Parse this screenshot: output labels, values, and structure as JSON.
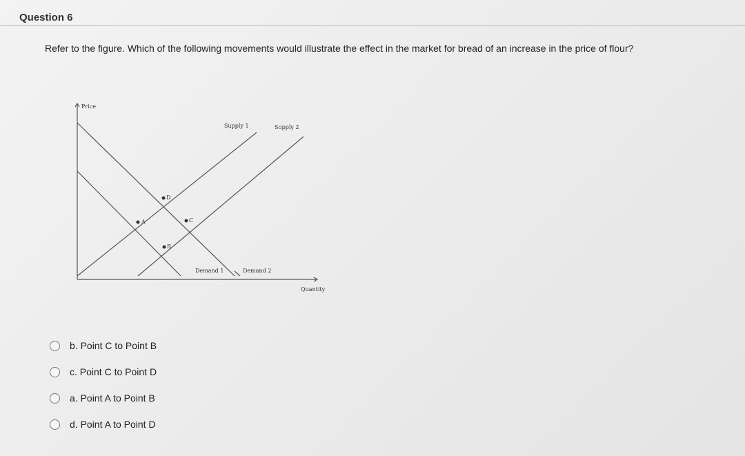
{
  "header": {
    "title": "Question 6"
  },
  "question": {
    "text": "Refer to the figure. Which of the following movements would illustrate the effect in the market for bread of an increase in the price of flour?"
  },
  "figure": {
    "axis_labels": {
      "y": "Price",
      "x": "Quantity"
    },
    "curve_labels": {
      "supply_1": "Supply 1",
      "supply_2": "Supply 2",
      "demand_1": "Demand 1",
      "demand_2": "Demand 2"
    },
    "points": {
      "a": "A",
      "b": "B",
      "c": "C",
      "d": "D"
    }
  },
  "options": [
    "b. Point C to Point B",
    "c. Point C to Point D",
    "a. Point A to Point B",
    "d. Point A to Point D"
  ]
}
